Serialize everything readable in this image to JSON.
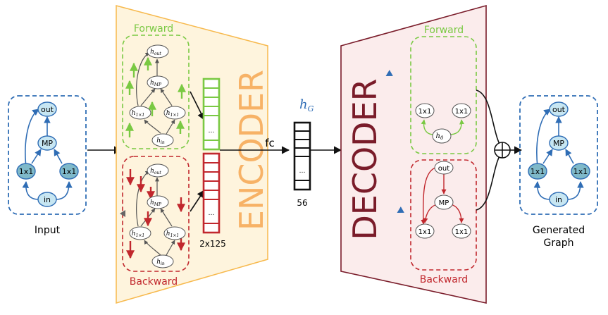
{
  "input_graph": {
    "caption": "Input",
    "nodes": {
      "out": "out",
      "mp": "MP",
      "left": "1x1",
      "right": "1x1",
      "in": "in"
    }
  },
  "encoder": {
    "title": "ENCODER",
    "forward_label": "Forward",
    "backward_label": "Backward",
    "forward_nodes": {
      "out": "h",
      "out_sub": "out",
      "mp": "h",
      "mp_sub": "MP",
      "left": "h",
      "left_sub": "1×1",
      "right": "h",
      "right_sub": "1×1",
      "in": "h",
      "in_sub": "in"
    },
    "backward_nodes": {
      "out": "h",
      "out_sub": "out",
      "mp": "h",
      "mp_sub": "MP",
      "left": "h",
      "left_sub": "1×1",
      "right": "h",
      "right_sub": "1×1",
      "in": "h",
      "in_sub": "in"
    },
    "stack_size": "2x125",
    "ellipsis": "…"
  },
  "fc_label": "fc",
  "latent": {
    "symbol": "h",
    "subscript": "G",
    "size": "56",
    "ellipsis": "…"
  },
  "decoder": {
    "title": "DECODER",
    "forward_label": "Forward",
    "backward_label": "Backward",
    "forward_nodes": {
      "left": "1x1",
      "right": "1x1",
      "seed": "h",
      "seed_sub": "0"
    },
    "backward_nodes": {
      "out": "out",
      "mp": "MP",
      "left": "1x1",
      "right": "1x1"
    }
  },
  "output_graph": {
    "caption_line1": "Generated",
    "caption_line2": "Graph",
    "nodes": {
      "out": "out",
      "mp": "MP",
      "left": "1x1",
      "right": "1x1",
      "in": "in"
    }
  },
  "colors": {
    "blue": "#2f6db5",
    "node_fill": "#c7e6f2",
    "green": "#7ac943",
    "red": "#c1272d",
    "encoder_fill": "#fef4dd",
    "encoder_stroke": "#f7b94d",
    "encoder_text": "#f7b266",
    "decoder_fill": "#fbecec",
    "decoder_stroke": "#7a1c2a",
    "decoder_text": "#7a1c2a"
  }
}
